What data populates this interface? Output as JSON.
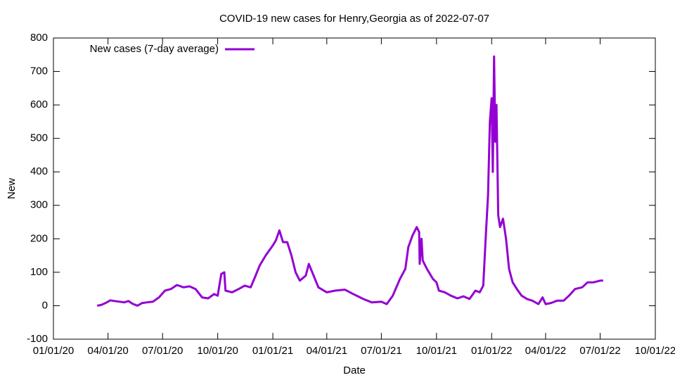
{
  "chart_data": {
    "type": "line",
    "title": "COVID-19 new cases for Henry,Georgia as of 2022-07-07",
    "x_label": "Date",
    "y_label": "New",
    "x": [
      "2020-03-14",
      "2020-03-20",
      "2020-03-28",
      "2020-04-05",
      "2020-04-12",
      "2020-04-20",
      "2020-04-28",
      "2020-05-05",
      "2020-05-12",
      "2020-05-20",
      "2020-05-28",
      "2020-06-05",
      "2020-06-15",
      "2020-06-25",
      "2020-07-05",
      "2020-07-15",
      "2020-07-25",
      "2020-08-05",
      "2020-08-15",
      "2020-08-25",
      "2020-09-05",
      "2020-09-15",
      "2020-09-25",
      "2020-10-01",
      "2020-10-07",
      "2020-10-12",
      "2020-10-14",
      "2020-10-25",
      "2020-11-05",
      "2020-11-15",
      "2020-11-25",
      "2020-12-01",
      "2020-12-10",
      "2020-12-20",
      "2020-12-28",
      "2021-01-01",
      "2021-01-06",
      "2021-01-12",
      "2021-01-18",
      "2021-01-25",
      "2021-02-01",
      "2021-02-08",
      "2021-02-15",
      "2021-02-25",
      "2021-03-02",
      "2021-03-10",
      "2021-03-18",
      "2021-04-01",
      "2021-04-15",
      "2021-05-01",
      "2021-05-15",
      "2021-06-01",
      "2021-06-15",
      "2021-07-01",
      "2021-07-10",
      "2021-07-20",
      "2021-08-01",
      "2021-08-10",
      "2021-08-15",
      "2021-08-22",
      "2021-08-29",
      "2021-09-02",
      "2021-09-03",
      "2021-09-06",
      "2021-09-08",
      "2021-09-15",
      "2021-09-25",
      "2021-10-01",
      "2021-10-05",
      "2021-10-15",
      "2021-10-25",
      "2021-11-05",
      "2021-11-15",
      "2021-11-25",
      "2021-12-05",
      "2021-12-12",
      "2021-12-18",
      "2021-12-22",
      "2021-12-26",
      "2021-12-29",
      "2022-01-01",
      "2022-01-03",
      "2022-01-05",
      "2022-01-07",
      "2022-01-09",
      "2022-01-12",
      "2022-01-15",
      "2022-01-20",
      "2022-01-25",
      "2022-01-30",
      "2022-02-05",
      "2022-02-12",
      "2022-02-20",
      "2022-03-01",
      "2022-03-10",
      "2022-03-20",
      "2022-03-27",
      "2022-04-01",
      "2022-04-10",
      "2022-04-20",
      "2022-05-01",
      "2022-05-10",
      "2022-05-20",
      "2022-06-01",
      "2022-06-10",
      "2022-06-20",
      "2022-07-01",
      "2022-07-06"
    ],
    "series": [
      {
        "name": "New cases (7-day average)",
        "color": "#9400d3",
        "values": [
          0,
          2,
          8,
          16,
          14,
          12,
          10,
          14,
          6,
          0,
          8,
          10,
          12,
          25,
          45,
          50,
          62,
          55,
          58,
          50,
          25,
          22,
          35,
          30,
          95,
          100,
          45,
          40,
          50,
          60,
          55,
          80,
          120,
          150,
          170,
          180,
          195,
          225,
          190,
          190,
          150,
          100,
          75,
          90,
          125,
          90,
          55,
          40,
          45,
          48,
          35,
          20,
          10,
          12,
          5,
          30,
          80,
          110,
          175,
          210,
          235,
          220,
          125,
          200,
          135,
          110,
          80,
          70,
          45,
          40,
          30,
          22,
          28,
          20,
          45,
          40,
          60,
          200,
          330,
          550,
          620,
          400,
          745,
          490,
          600,
          270,
          235,
          260,
          200,
          110,
          70,
          50,
          30,
          20,
          15,
          5,
          25,
          5,
          8,
          15,
          15,
          30,
          50,
          55,
          70,
          70,
          75,
          75
        ]
      }
    ],
    "xlim": [
      "2020-01-01",
      "2022-10-01"
    ],
    "xticks": [
      {
        "value": "2020-01-01",
        "label": "01/01/20"
      },
      {
        "value": "2020-04-01",
        "label": "04/01/20"
      },
      {
        "value": "2020-07-01",
        "label": "07/01/20"
      },
      {
        "value": "2020-10-01",
        "label": "10/01/20"
      },
      {
        "value": "2021-01-01",
        "label": "01/01/21"
      },
      {
        "value": "2021-04-01",
        "label": "04/01/21"
      },
      {
        "value": "2021-07-01",
        "label": "07/01/21"
      },
      {
        "value": "2021-10-01",
        "label": "10/01/21"
      },
      {
        "value": "2022-01-01",
        "label": "01/01/22"
      },
      {
        "value": "2022-04-01",
        "label": "04/01/22"
      },
      {
        "value": "2022-07-01",
        "label": "07/01/22"
      },
      {
        "value": "2022-10-01",
        "label": "10/01/22"
      }
    ],
    "ylim": [
      -100,
      800
    ],
    "yticks": [
      -100,
      0,
      100,
      200,
      300,
      400,
      500,
      600,
      700,
      800
    ],
    "grid": false,
    "legend": "top-left"
  }
}
